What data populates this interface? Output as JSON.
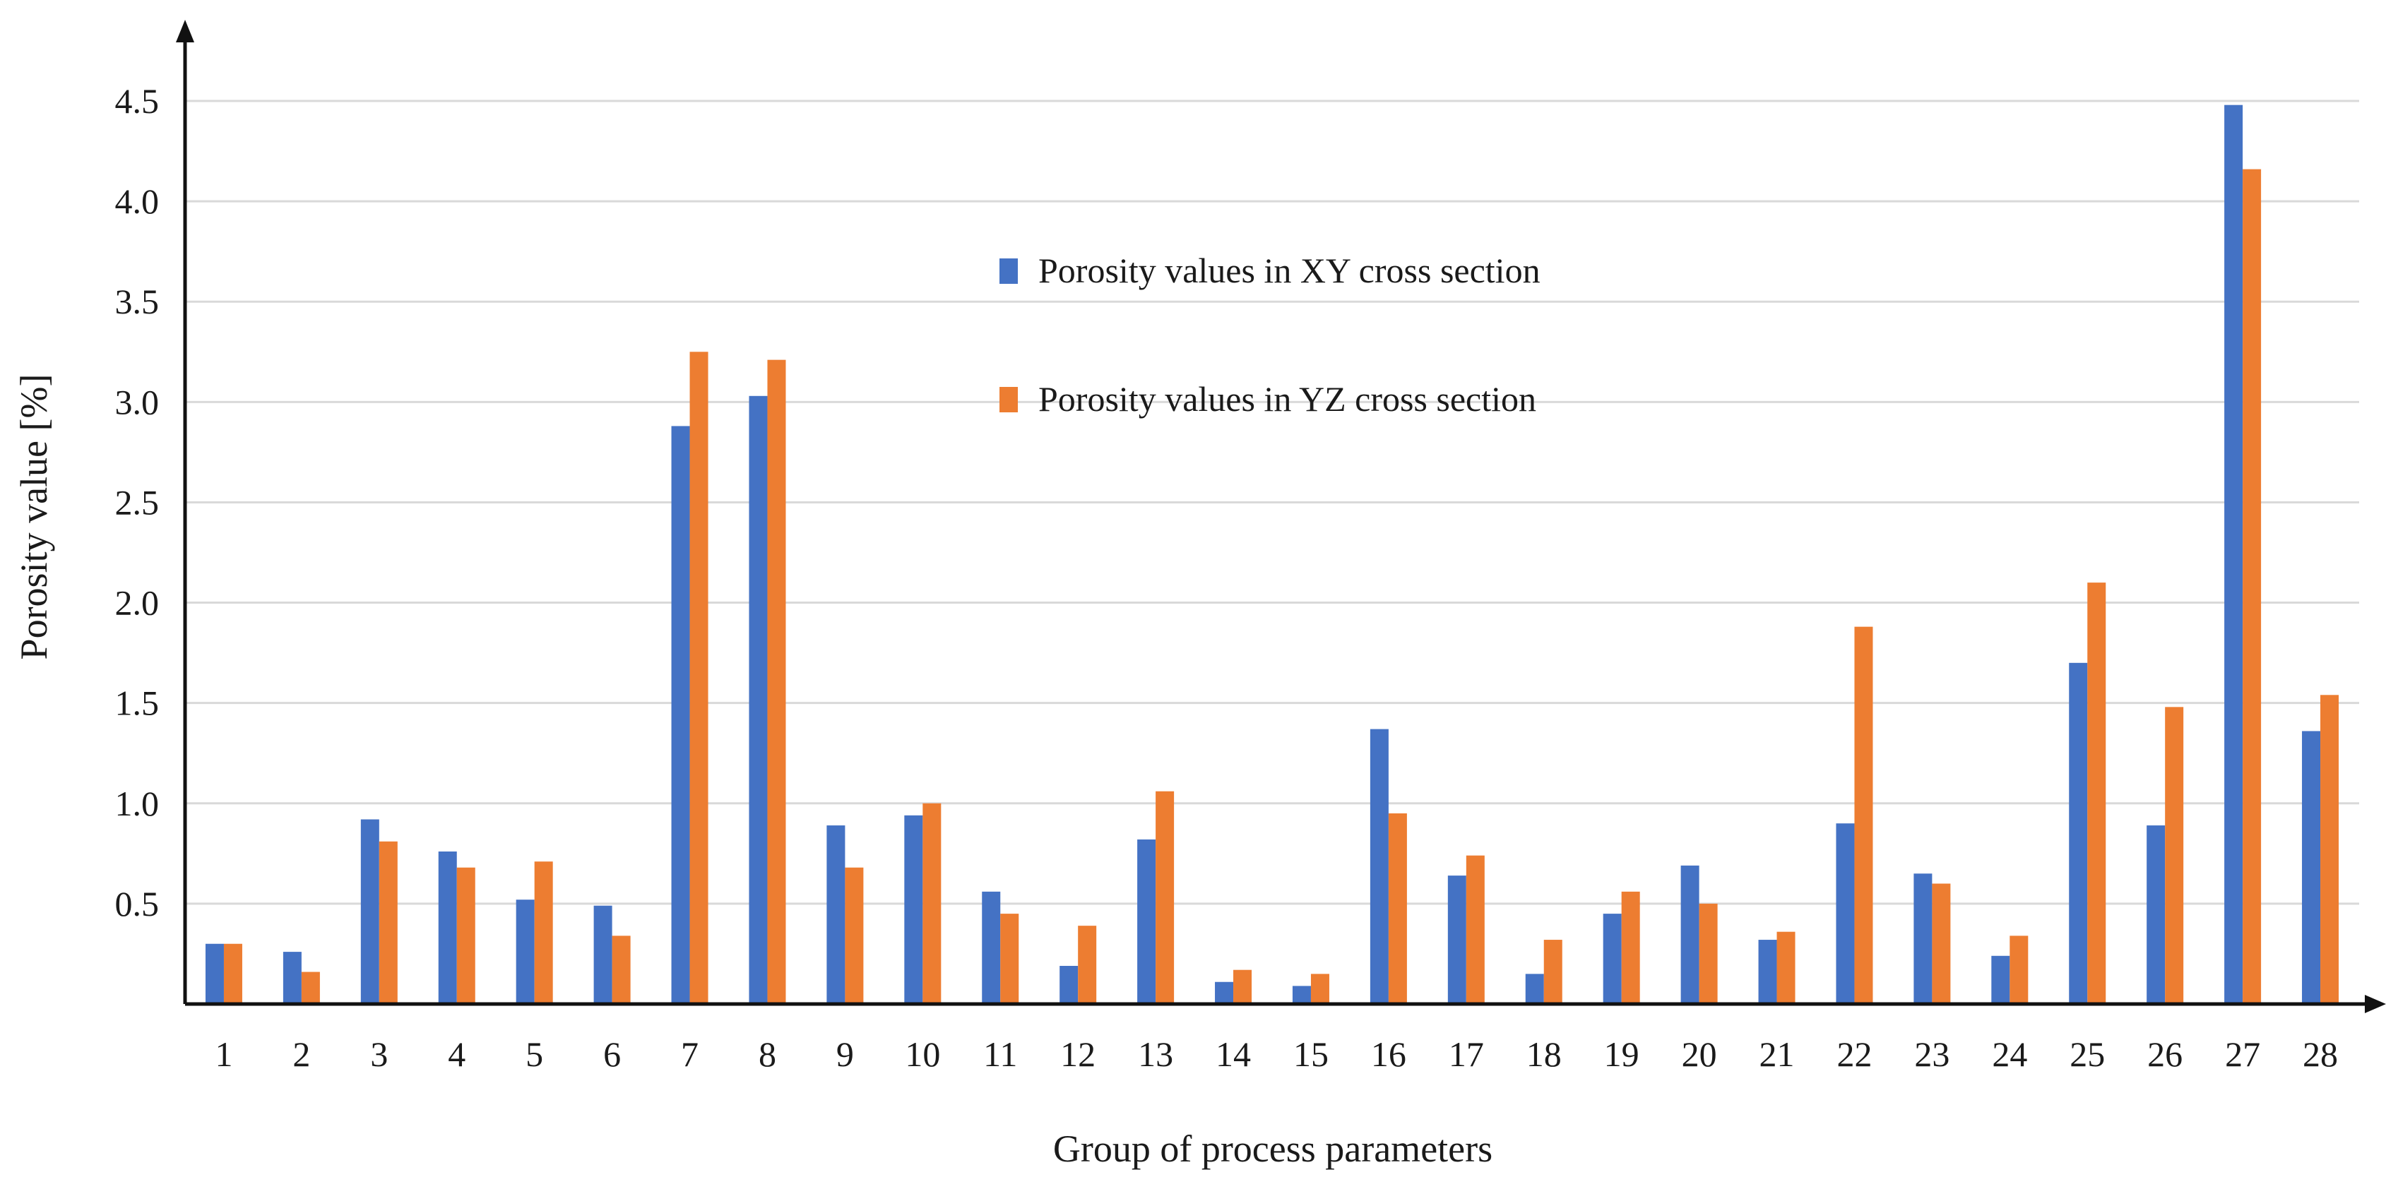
{
  "chart_data": {
    "type": "bar",
    "title": "",
    "xlabel": "Group of process parameters",
    "ylabel": "Porosity value [%]",
    "ylim": [
      0,
      5.0
    ],
    "yticks": [
      "0.5",
      "1.0",
      "1.5",
      "2.0",
      "2.5",
      "3.0",
      "3.5",
      "4.0",
      "4.5"
    ],
    "grid": true,
    "legend_position": "top-center",
    "categories": [
      "1",
      "2",
      "3",
      "4",
      "5",
      "6",
      "7",
      "8",
      "9",
      "10",
      "11",
      "12",
      "13",
      "14",
      "15",
      "16",
      "17",
      "18",
      "19",
      "20",
      "21",
      "22",
      "23",
      "24",
      "25",
      "26",
      "27",
      "28"
    ],
    "series": [
      {
        "name": "Porosity values in XY cross section",
        "color": "#4472C4",
        "values": [
          0.3,
          0.26,
          0.92,
          0.76,
          0.52,
          0.49,
          2.88,
          3.03,
          0.89,
          0.94,
          0.56,
          0.19,
          0.82,
          0.11,
          0.09,
          1.37,
          0.64,
          0.15,
          0.45,
          0.69,
          0.32,
          0.9,
          0.65,
          0.24,
          1.7,
          0.89,
          4.48,
          1.36
        ]
      },
      {
        "name": "Porosity values in YZ cross section",
        "color": "#ED7D31",
        "values": [
          0.3,
          0.16,
          0.81,
          0.68,
          0.71,
          0.34,
          3.25,
          3.21,
          0.68,
          1.0,
          0.45,
          0.39,
          1.06,
          0.17,
          0.15,
          0.95,
          0.74,
          0.32,
          0.56,
          0.5,
          0.36,
          1.88,
          0.6,
          0.34,
          2.1,
          1.48,
          4.16,
          1.54
        ]
      }
    ]
  }
}
